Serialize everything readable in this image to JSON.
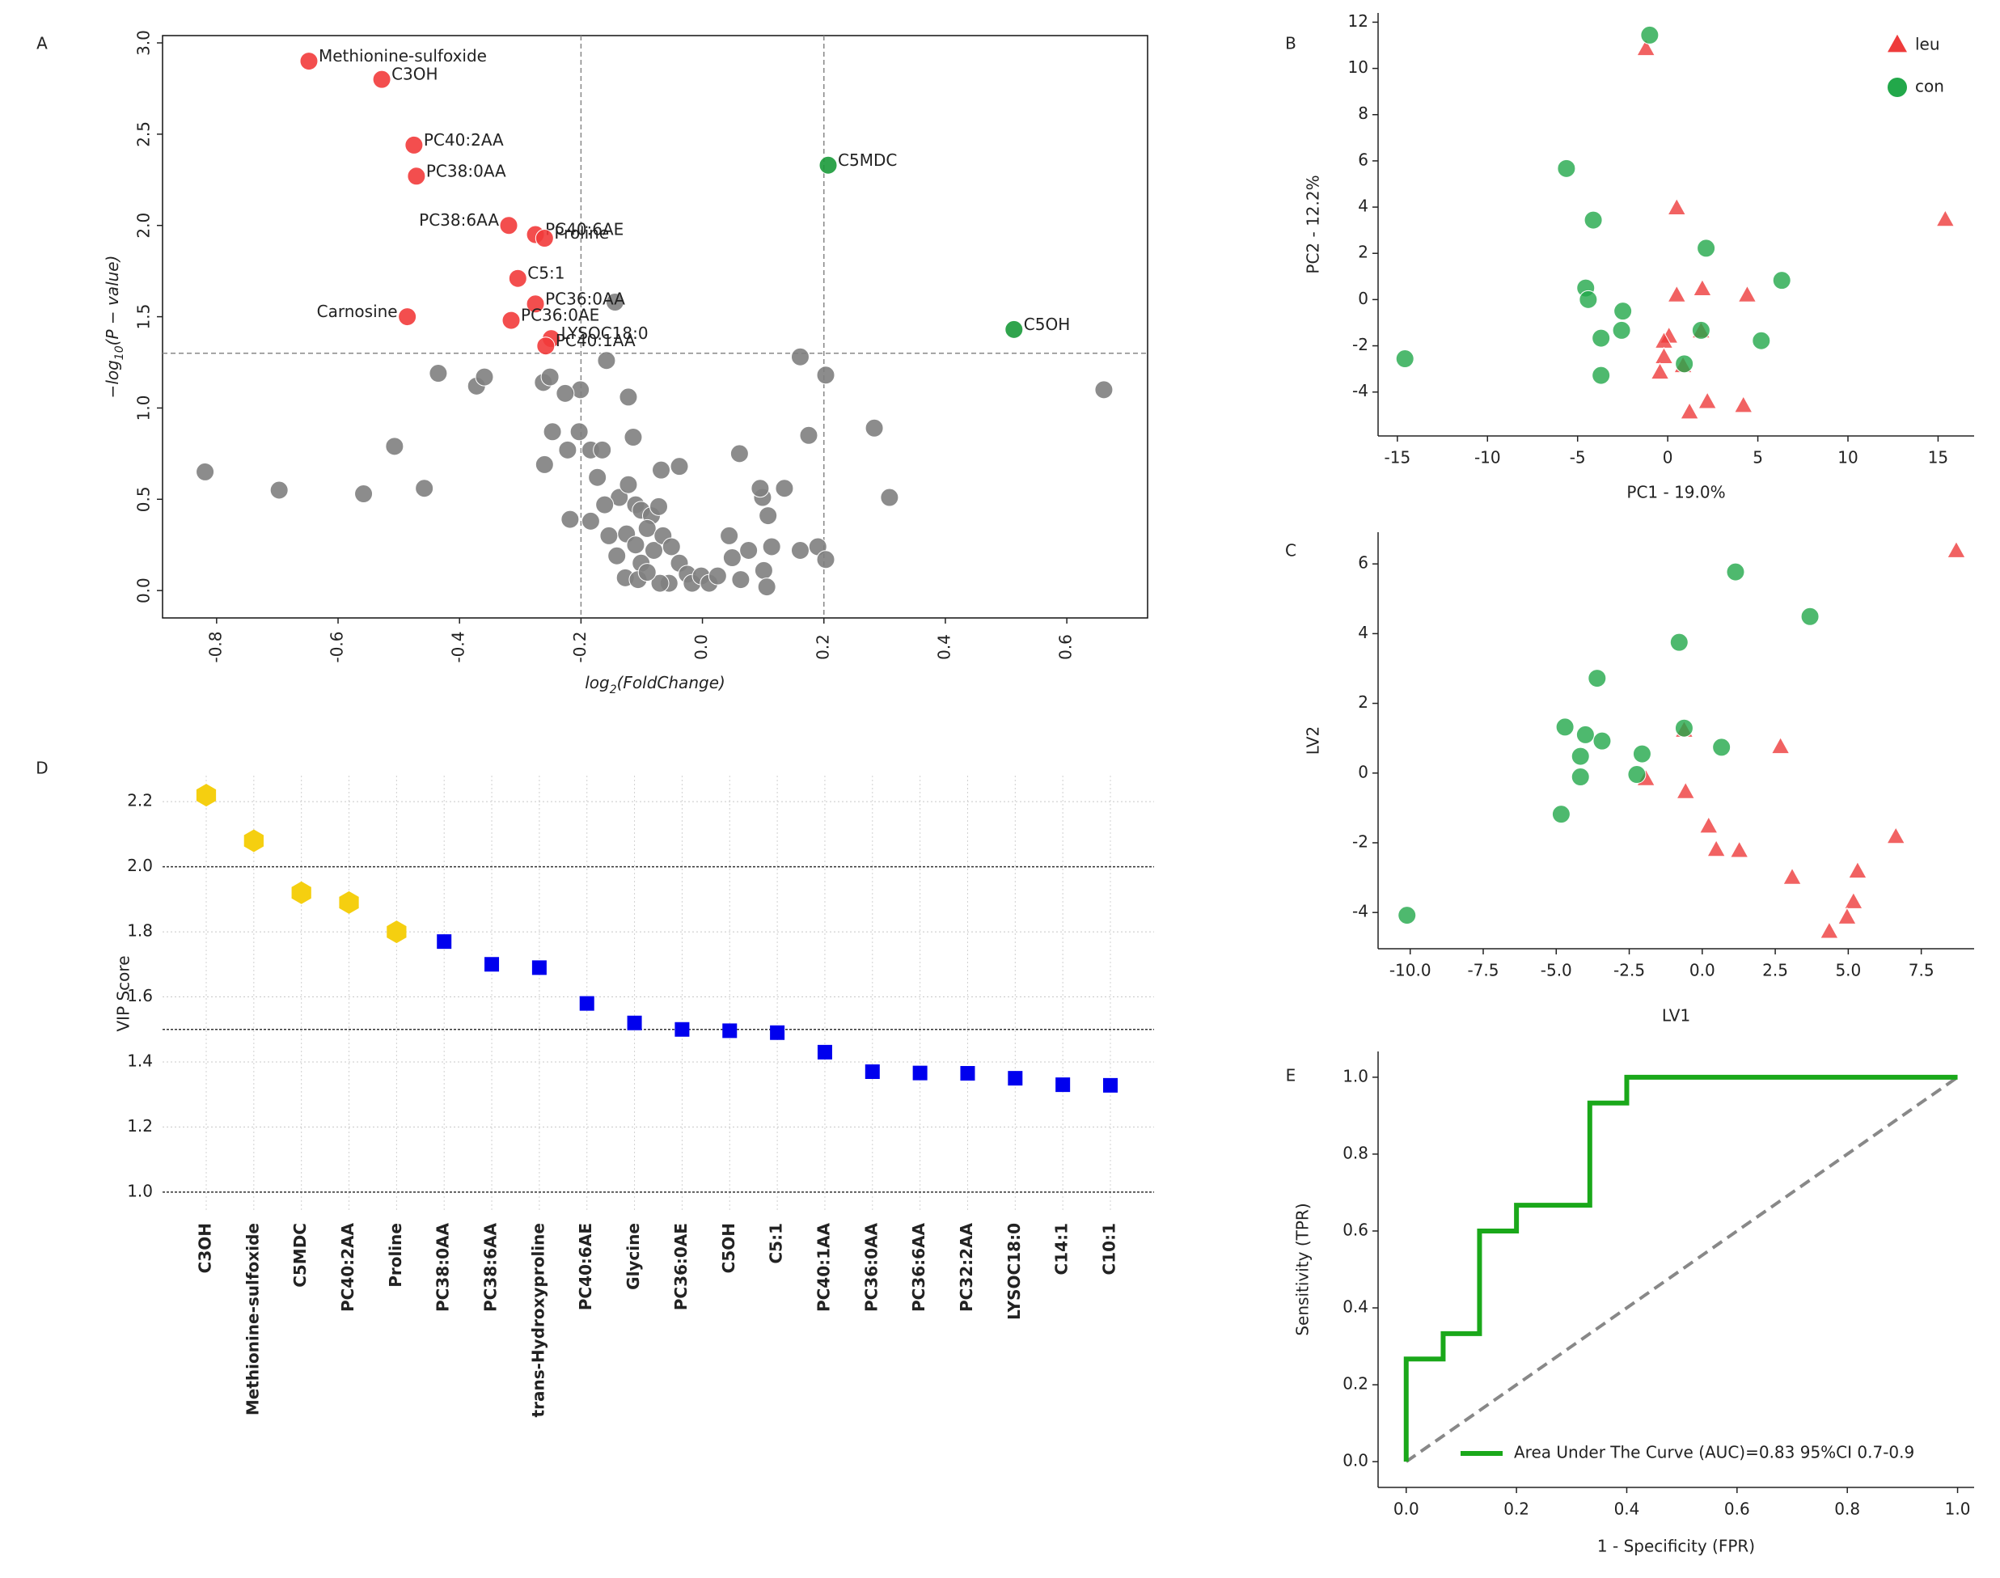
{
  "chart_data": [
    {
      "type": "scatter",
      "panel": "A",
      "xlabel": [
        "log",
        "2",
        "(FoldChange)"
      ],
      "ylabel": [
        "−log",
        "10",
        "(P − value)"
      ],
      "xlim": [
        -0.889,
        0.733
      ],
      "ylim": [
        -0.15,
        3.04
      ],
      "xticks": [
        -0.8,
        -0.6,
        -0.4,
        -0.2,
        {
          "value": 0,
          "label": "0.0"
        },
        0.2,
        0.4,
        0.6
      ],
      "yticks": [
        {
          "value": 0,
          "label": "0.0"
        },
        0.5,
        {
          "value": 1,
          "label": "1.0"
        },
        1.5,
        {
          "value": 2,
          "label": "2.0"
        },
        2.5,
        {
          "value": 3,
          "label": "3.0"
        }
      ],
      "hlines": [
        1.3
      ],
      "vlines": [
        -0.2,
        0.2
      ],
      "series": [
        {
          "color": "#808080",
          "marker": "circle",
          "x": [
            -0.819,
            -0.697,
            -0.558,
            -0.507,
            -0.458,
            -0.435,
            -0.372,
            -0.359,
            -0.262,
            -0.251,
            -0.201,
            -0.26,
            -0.247,
            -0.222,
            -0.226,
            -0.203,
            -0.184,
            -0.165,
            -0.144,
            -0.158,
            -0.122,
            -0.114,
            -0.068,
            -0.038,
            -0.173,
            -0.137,
            -0.122,
            -0.218,
            -0.184,
            -0.161,
            -0.11,
            -0.101,
            -0.084,
            -0.072,
            -0.154,
            -0.141,
            -0.125,
            -0.11,
            -0.101,
            -0.091,
            -0.08,
            -0.065,
            -0.051,
            -0.038,
            -0.025,
            -0.055,
            -0.07,
            -0.127,
            -0.106,
            -0.091,
            -0.017,
            -0.002,
            0.011,
            0.025,
            0.044,
            0.049,
            0.063,
            0.076,
            0.099,
            0.114,
            0.101,
            0.106,
            0.108,
            0.095,
            0.135,
            0.061,
            0.161,
            0.19,
            0.203,
            0.175,
            0.161,
            0.203,
            0.283,
            0.308,
            0.661
          ],
          "y": [
            0.65,
            0.55,
            0.53,
            0.79,
            0.56,
            1.19,
            1.12,
            1.17,
            1.14,
            1.17,
            1.1,
            0.69,
            0.87,
            0.77,
            1.08,
            0.87,
            0.77,
            0.77,
            1.58,
            1.26,
            1.06,
            0.84,
            0.66,
            0.68,
            0.62,
            0.51,
            0.58,
            0.39,
            0.38,
            0.47,
            0.47,
            0.44,
            0.41,
            0.46,
            0.3,
            0.19,
            0.31,
            0.25,
            0.15,
            0.34,
            0.22,
            0.3,
            0.24,
            0.15,
            0.09,
            0.04,
            0.04,
            0.07,
            0.06,
            0.1,
            0.04,
            0.08,
            0.04,
            0.08,
            0.3,
            0.18,
            0.06,
            0.22,
            0.51,
            0.24,
            0.11,
            0.02,
            0.41,
            0.56,
            0.56,
            0.75,
            0.22,
            0.24,
            0.17,
            0.85,
            1.28,
            1.18,
            0.89,
            0.51,
            1.1
          ]
        },
        {
          "color": "#f23b3b",
          "marker": "circle",
          "labels": [
            "Methionine-sulfoxide",
            "C3OH",
            "PC40:2AA",
            "PC38:0AA",
            "PC38:6AA",
            "PC40:6AE",
            "Proline",
            "C5:1",
            "PC36:0AA",
            "Carnosine",
            "PC36:0AE",
            "LYSOC18:0",
            "PC40:1AA"
          ],
          "x": [
            -0.648,
            -0.528,
            -0.475,
            -0.471,
            -0.319,
            -0.275,
            -0.26,
            -0.304,
            -0.275,
            -0.486,
            -0.315,
            -0.249,
            -0.258
          ],
          "y": [
            2.9,
            2.8,
            2.44,
            2.27,
            2.0,
            1.95,
            1.93,
            1.71,
            1.57,
            1.5,
            1.48,
            1.38,
            1.34
          ]
        },
        {
          "color": "#1a9a3a",
          "marker": "circle",
          "labels": [
            "C5MDC",
            "C5OH"
          ],
          "x": [
            0.207,
            0.513
          ],
          "y": [
            2.33,
            1.43
          ]
        }
      ]
    },
    {
      "type": "scatter",
      "panel": "B",
      "xlabel": "PC1 - 19.0%",
      "ylabel": "PC2 - 12.2%",
      "xlim": [
        -16.07,
        17.0
      ],
      "ylim": [
        -5.9,
        12.4
      ],
      "xticks": [
        -15,
        -10,
        -5,
        0,
        5,
        10,
        15
      ],
      "yticks": [
        -4,
        -2,
        0,
        2,
        4,
        6,
        8,
        10,
        12
      ],
      "legend": "upper right",
      "series": [
        {
          "name": "leu",
          "color": "#ee3b3b",
          "marker": "triangle",
          "x": [
            -1.21,
            0.5,
            15.4,
            0.5,
            1.92,
            4.41,
            0.07,
            -0.21,
            -0.21,
            0.85,
            -0.43,
            1.21,
            2.2,
            4.2,
            1.85
          ],
          "y": [
            10.83,
            3.94,
            3.44,
            0.17,
            0.44,
            0.17,
            -1.61,
            -1.83,
            -2.5,
            -2.89,
            -3.17,
            -4.89,
            -4.44,
            -4.61,
            -1.39
          ]
        },
        {
          "name": "con",
          "color": "#22a84a",
          "marker": "circle",
          "x": [
            -1.0,
            -5.62,
            -4.13,
            2.13,
            6.33,
            -4.55,
            -4.41,
            -2.49,
            -2.56,
            1.85,
            -3.7,
            5.19,
            0.92,
            -14.58,
            -3.7
          ],
          "y": [
            11.44,
            5.67,
            3.44,
            2.22,
            0.83,
            0.5,
            0.0,
            -0.5,
            -1.33,
            -1.33,
            -1.67,
            -1.78,
            -2.78,
            -2.56,
            -3.28
          ]
        }
      ]
    },
    {
      "type": "scatter",
      "panel": "C",
      "xlabel": "LV1",
      "ylabel": "LV2",
      "xlim": [
        -11.1,
        9.31
      ],
      "ylim": [
        -5.04,
        6.91
      ],
      "xticks": [
        {
          "value": -10,
          "label": "-10.0"
        },
        -7.5,
        {
          "value": -5,
          "label": "-5.0"
        },
        -2.5,
        {
          "value": 0,
          "label": "0.0"
        },
        2.5,
        {
          "value": 5,
          "label": "5.0"
        },
        7.5
      ],
      "yticks": [
        -4,
        -2,
        0,
        2,
        4,
        6
      ],
      "series": [
        {
          "color": "#ee3b3b",
          "marker": "triangle",
          "x": [
            8.7,
            2.68,
            -1.93,
            -0.57,
            0.22,
            0.48,
            1.27,
            3.08,
            6.63,
            5.32,
            5.18,
            4.96,
            4.35,
            -0.62
          ],
          "y": [
            6.36,
            0.74,
            -0.18,
            -0.55,
            -1.54,
            -2.21,
            -2.24,
            -3.01,
            -1.84,
            -2.83,
            -3.71,
            -4.15,
            -4.56,
            1.21
          ]
        },
        {
          "color": "#22a84a",
          "marker": "circle",
          "x": [
            -10.11,
            1.14,
            3.69,
            -0.79,
            -3.6,
            -4.7,
            -4.0,
            -3.43,
            -4.17,
            -4.17,
            -2.06,
            -2.24,
            -0.62,
            0.66,
            -4.83
          ],
          "y": [
            -4.08,
            5.77,
            4.49,
            3.75,
            2.72,
            1.32,
            1.1,
            0.92,
            0.48,
            -0.11,
            0.55,
            -0.04,
            1.29,
            0.74,
            -1.18
          ]
        }
      ]
    },
    {
      "type": "dot",
      "panel": "D",
      "ylabel": "VIP Score",
      "categories": [
        "C3OH",
        "Methionine-sulfoxide",
        "C5MDC",
        "PC40:2AA",
        "Proline",
        "PC38:0AA",
        "PC38:6AA",
        "trans-Hydroxyproline",
        "PC40:6AE",
        "Glycine",
        "PC36:0AE",
        "C5OH",
        "C5:1",
        "PC40:1AA",
        "PC36:0AA",
        "PC36:6AA",
        "PC32:2AA",
        "LYSOC18:0",
        "C14:1",
        "C10:1"
      ],
      "values": [
        2.22,
        2.08,
        1.92,
        1.89,
        1.8,
        1.77,
        1.7,
        1.69,
        1.58,
        1.52,
        1.5,
        1.496,
        1.49,
        1.43,
        1.37,
        1.366,
        1.365,
        1.35,
        1.33,
        1.328
      ],
      "colors": [
        "#f5cf10",
        "#f5cf10",
        "#f5cf10",
        "#f5cf10",
        "#f5cf10",
        "#0000ee",
        "#0000ee",
        "#0000ee",
        "#0000ee",
        "#0000ee",
        "#0000ee",
        "#0000ee",
        "#0000ee",
        "#0000ee",
        "#0000ee",
        "#0000ee",
        "#0000ee",
        "#0000ee",
        "#0000ee",
        "#0000ee"
      ],
      "markers": [
        "hexagon",
        "hexagon",
        "hexagon",
        "hexagon",
        "hexagon",
        "square",
        "square",
        "square",
        "square",
        "square",
        "square",
        "square",
        "square",
        "square",
        "square",
        "square",
        "square",
        "square",
        "square",
        "square"
      ],
      "ylim": [
        0.94,
        2.28
      ],
      "yticks": [
        {
          "value": 1,
          "label": "1.0"
        },
        1.2,
        1.4,
        1.6,
        1.8,
        {
          "value": 2,
          "label": "2.0"
        },
        2.2
      ],
      "grid": true,
      "hlines": [
        1.0,
        1.5,
        2.0
      ]
    },
    {
      "type": "line",
      "panel": "E",
      "xlabel": "1 - Specificity (FPR)",
      "ylabel": "Sensitivity (TPR)",
      "xlim": [
        -0.051,
        1.03
      ],
      "ylim": [
        -0.067,
        1.067
      ],
      "xticks": [
        {
          "value": 0,
          "label": "0.0"
        },
        0.2,
        0.4,
        0.6,
        0.8,
        {
          "value": 1,
          "label": "1.0"
        }
      ],
      "yticks": [
        {
          "value": 0,
          "label": "0.0"
        },
        0.2,
        0.4,
        0.6,
        0.8,
        {
          "value": 1,
          "label": "1.0"
        }
      ],
      "legend": "lower right",
      "reference": {
        "color": "#888888",
        "x": [
          0,
          1
        ],
        "y": [
          0,
          1
        ]
      },
      "series": [
        {
          "name": "Area Under The Curve (AUC)=0.83 95%CI 0.7-0.9",
          "color": "#1aa81a",
          "x": [
            0,
            0,
            0.067,
            0.067,
            0.133,
            0.133,
            0.2,
            0.2,
            0.333,
            0.333,
            0.4,
            0.4,
            1
          ],
          "y": [
            0,
            0.267,
            0.267,
            0.333,
            0.333,
            0.6,
            0.6,
            0.667,
            0.667,
            0.933,
            0.933,
            1,
            1
          ]
        }
      ]
    }
  ]
}
